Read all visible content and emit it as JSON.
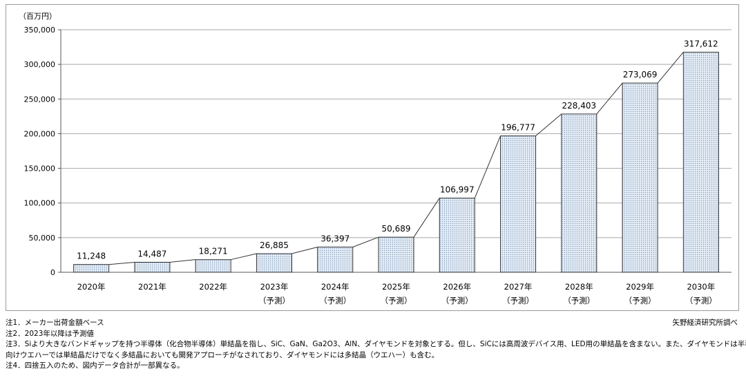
{
  "chart_data": {
    "type": "bar",
    "unit_label": "（百万円）",
    "categories": [
      "2020年",
      "2021年",
      "2022年",
      "2023年",
      "2024年",
      "2025年",
      "2026年",
      "2027年",
      "2028年",
      "2029年",
      "2030年"
    ],
    "sublabels": [
      "",
      "",
      "",
      "（予測）",
      "（予測）",
      "（予測）",
      "（予測）",
      "（予測）",
      "（予測）",
      "（予測）",
      "（予測）"
    ],
    "values": [
      11248,
      14487,
      18271,
      26885,
      36397,
      50689,
      106997,
      196777,
      228403,
      273069,
      317612
    ],
    "value_labels": [
      "11,248",
      "14,487",
      "18,271",
      "26,885",
      "36,397",
      "50,689",
      "106,997",
      "196,777",
      "228,403",
      "273,069",
      "317,612"
    ],
    "yticks": [
      0,
      50000,
      100000,
      150000,
      200000,
      250000,
      300000,
      350000
    ],
    "ytick_labels": [
      "0",
      "50,000",
      "100,000",
      "150,000",
      "200,000",
      "250,000",
      "300,000",
      "350,000"
    ],
    "ylim": [
      0,
      350000
    ],
    "grid": true,
    "bar_fill": "#dce7f3",
    "bar_stroke": "#333333"
  },
  "notes": [
    "注1．メーカー出荷金額ベース",
    "注2．2023年以降は予測値",
    "注3．Siより大きなバンドギャップを持つ半導体（化合物半導体）単結晶を指し、SiC、GaN、Ga2O3、AlN、ダイヤモンドを対象とする。但し、SiCには高周波デバイス用、LED用の単結晶を含まない。また、ダイヤモンドは半導体",
    "向けウエハーでは単結晶だけでなく多結晶においても開発アプローチがなされており、ダイヤモンドには多結晶（ウエハー）も含む。",
    "注4．四捨五入のため、図内データ合計が一部異なる。"
  ],
  "source": "矢野経済研究所調べ"
}
